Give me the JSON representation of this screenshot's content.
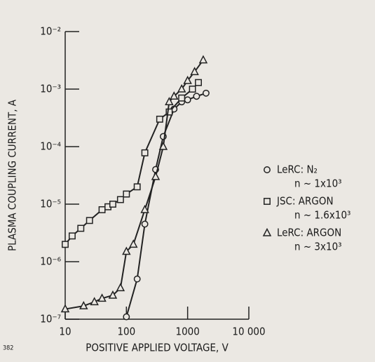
{
  "chart_data": {
    "type": "line",
    "xlabel": "POSITIVE APPLIED VOLTAGE, V",
    "ylabel": "PLASMA COUPLING CURRENT, A",
    "figure_number": "382",
    "xscale": "log",
    "yscale": "log",
    "xlim": [
      10,
      10000
    ],
    "ylim": [
      1e-07,
      0.01
    ],
    "xticks": [
      10,
      100,
      1000,
      {
        "value": 10000,
        "label": "10 000"
      }
    ],
    "yticks": [
      {
        "value": 1e-07,
        "label": "10⁻⁷"
      },
      {
        "value": 1e-06,
        "label": "10⁻⁶"
      },
      {
        "value": 1e-05,
        "label": "10⁻⁵"
      },
      {
        "value": 0.0001,
        "label": "10⁻⁴"
      },
      {
        "value": 0.001,
        "label": "10⁻³"
      },
      {
        "value": 0.01,
        "label": "10⁻²"
      }
    ],
    "color": "#222222",
    "legend": "right",
    "series": [
      {
        "name": "LeRC: N₂",
        "density": "n ~ 1x10³",
        "marker": "circle",
        "x": [
          100,
          150,
          200,
          300,
          400,
          600,
          800,
          1000,
          1400,
          2000
        ],
        "values": [
          1.1e-07,
          5e-07,
          4.5e-06,
          4e-05,
          0.00015,
          0.00045,
          0.0006,
          0.00065,
          0.00075,
          0.00085
        ]
      },
      {
        "name": "JSC: ARGON",
        "density": "n ~ 1.6x10³",
        "marker": "square",
        "x": [
          10,
          13,
          18,
          25,
          40,
          50,
          60,
          80,
          100,
          150,
          200,
          350,
          500,
          800,
          1200,
          1500
        ],
        "values": [
          2e-06,
          2.8e-06,
          3.8e-06,
          5.2e-06,
          8e-06,
          9e-06,
          1e-05,
          1.2e-05,
          1.5e-05,
          2e-05,
          7.8e-05,
          0.0003,
          0.0004,
          0.0007,
          0.001,
          0.0013
        ]
      },
      {
        "name": "LeRC: ARGON",
        "density": "n ~ 3x10³",
        "marker": "triangle",
        "x": [
          10,
          20,
          30,
          40,
          60,
          80,
          100,
          130,
          200,
          300,
          400,
          500,
          600,
          800,
          1000,
          1300,
          1800
        ],
        "values": [
          1.5e-07,
          1.7e-07,
          2e-07,
          2.3e-07,
          2.6e-07,
          3.5e-07,
          1.5e-06,
          2e-06,
          8e-06,
          3e-05,
          0.0001,
          0.0006,
          0.00075,
          0.001,
          0.0014,
          0.002,
          0.0032
        ]
      }
    ]
  }
}
